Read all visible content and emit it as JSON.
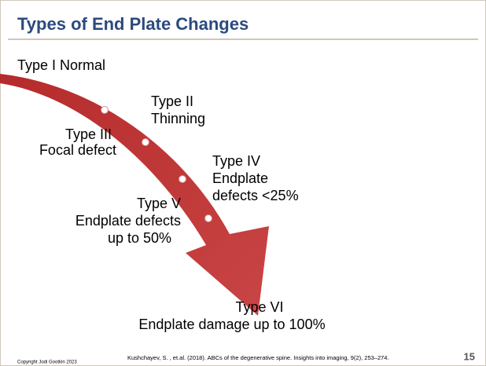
{
  "title": "Types of End Plate Changes",
  "types": [
    {
      "lines": [
        "Type I Normal"
      ]
    },
    {
      "lines": [
        "Type II",
        "Thinning"
      ]
    },
    {
      "lines": [
        "Type III",
        "Focal defect"
      ]
    },
    {
      "lines": [
        "Type IV",
        "Endplate",
        "defects <25%"
      ]
    },
    {
      "lines": [
        "Type V",
        "Endplate defects",
        "up to 50%"
      ]
    },
    {
      "lines": [
        "Type VI",
        "Endplate damage up to 100%"
      ]
    }
  ],
  "citation": "Kushchayev, S. , et.al. (2018). ABCs of the degenerative spine. Insights into imaging, 9(2), 253–274.",
  "copyright": "Copyright Jodi Gootkin 2023",
  "page_number": "15"
}
